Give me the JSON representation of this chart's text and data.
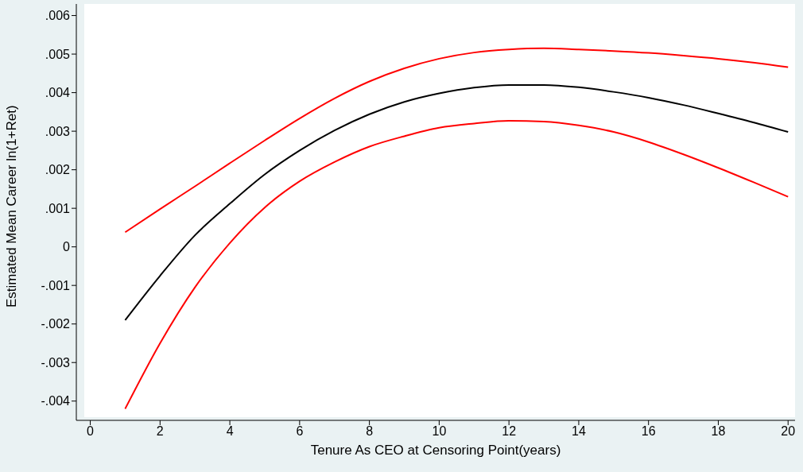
{
  "chart_data": {
    "type": "line",
    "xlabel": "Tenure As CEO at Censoring Point(years)",
    "ylabel": "Estimated Mean Career ln(1+Ret)",
    "x": [
      1,
      2,
      3,
      4,
      5,
      6,
      7,
      8,
      9,
      10,
      11,
      12,
      13,
      14,
      15,
      16,
      17,
      18,
      19,
      20
    ],
    "series": [
      {
        "color": "#ff0000",
        "values": [
          0.00038,
          0.00098,
          0.00157,
          0.00217,
          0.00276,
          0.00333,
          0.00385,
          0.00429,
          0.00463,
          0.00488,
          0.00504,
          0.00512,
          0.00515,
          0.00512,
          0.00508,
          0.00503,
          0.00496,
          0.00488,
          0.00478,
          0.00466
        ]
      },
      {
        "color": "#000000",
        "values": [
          -0.0019,
          -0.00075,
          0.0003,
          0.00112,
          0.00188,
          0.0025,
          0.00302,
          0.00344,
          0.00376,
          0.00398,
          0.00413,
          0.0042,
          0.0042,
          0.00414,
          0.00402,
          0.00387,
          0.00368,
          0.00346,
          0.00323,
          0.00298
        ]
      },
      {
        "color": "#ff0000",
        "values": [
          -0.0042,
          -0.0025,
          -0.00105,
          0.0001,
          0.00102,
          0.0017,
          0.0022,
          0.0026,
          0.00287,
          0.00309,
          0.0032,
          0.00327,
          0.00325,
          0.00315,
          0.00298,
          0.00272,
          0.0024,
          0.00205,
          0.00168,
          0.0013
        ]
      }
    ],
    "xlim": [
      -0.4,
      20.2
    ],
    "xticks": [
      0,
      2,
      4,
      6,
      8,
      10,
      12,
      14,
      16,
      18,
      20
    ],
    "ylim": [
      -0.0045,
      0.0063
    ],
    "yticks": [
      {
        "value": -0.004,
        "label": "-.004"
      },
      {
        "value": -0.003,
        "label": "-.003"
      },
      {
        "value": -0.002,
        "label": "-.002"
      },
      {
        "value": -0.001,
        "label": "-.001"
      },
      {
        "value": 0,
        "label": "0"
      },
      {
        "value": 0.001,
        "label": ".001"
      },
      {
        "value": 0.002,
        "label": ".002"
      },
      {
        "value": 0.003,
        "label": ".003"
      },
      {
        "value": 0.004,
        "label": ".004"
      },
      {
        "value": 0.005,
        "label": ".005"
      },
      {
        "value": 0.006,
        "label": ".006"
      }
    ],
    "marker": "none",
    "line_style": "solid"
  }
}
